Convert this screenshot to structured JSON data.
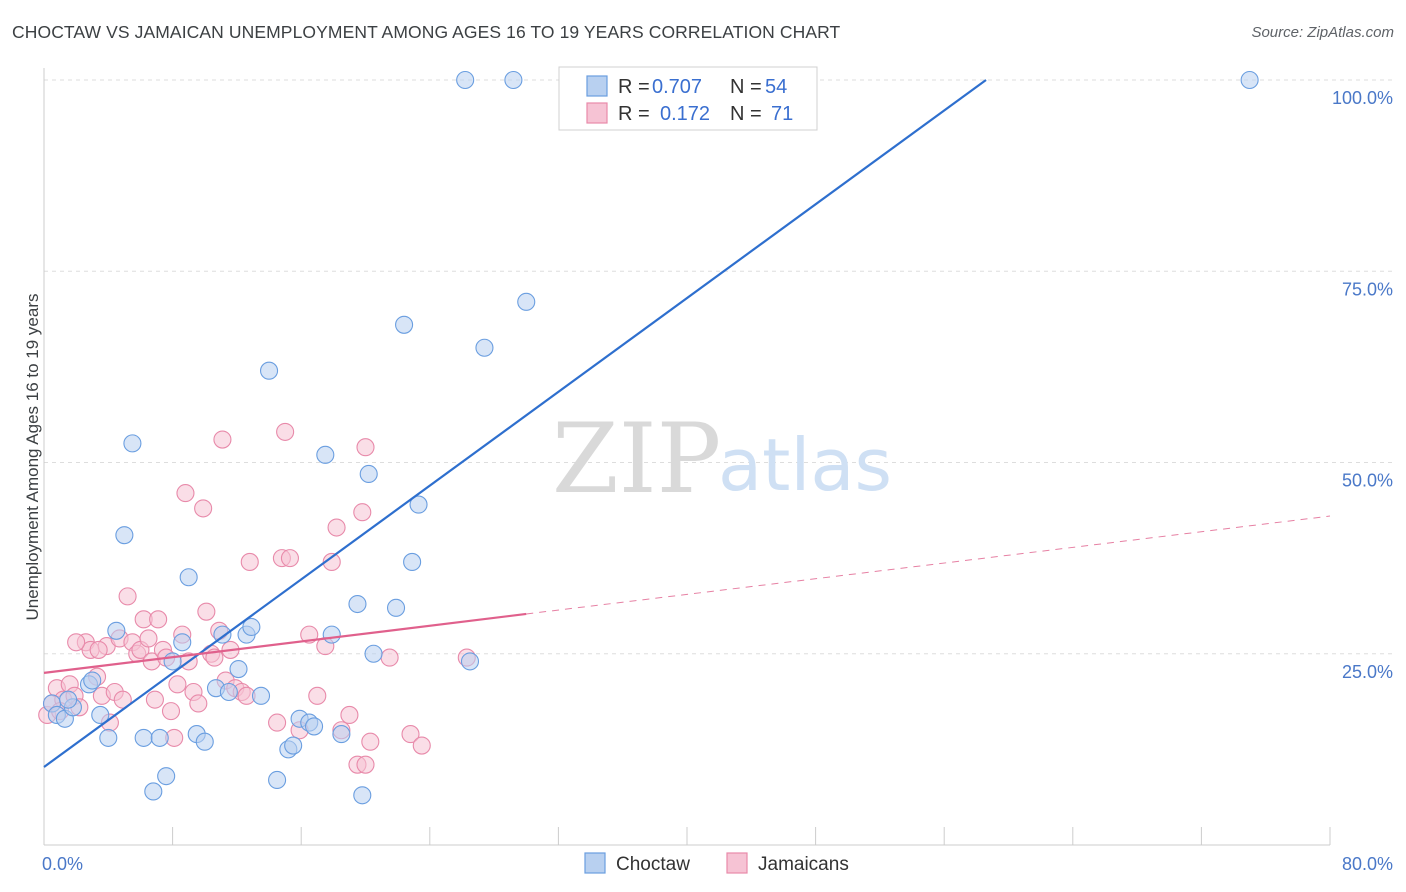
{
  "title": "CHOCTAW VS JAMAICAN UNEMPLOYMENT AMONG AGES 16 TO 19 YEARS CORRELATION CHART",
  "source": "Source: ZipAtlas.com",
  "watermark": {
    "zip": "ZIP",
    "atlas": "atlas"
  },
  "colors": {
    "blue_fill": "#b8d0f0",
    "blue_stroke": "#6a9ee0",
    "blue_line": "#2e6fce",
    "pink_fill": "#f6c3d4",
    "pink_stroke": "#e88aaa",
    "pink_line": "#e0608c",
    "tick_text": "#4a78c8",
    "grid": "#dddddd"
  },
  "legend_top": {
    "rows": [
      {
        "r_label": "R =",
        "r_value": "0.707",
        "n_label": "N =",
        "n_value": "54"
      },
      {
        "r_label": "R =",
        "r_value": "0.172",
        "n_label": "N =",
        "n_value": "71"
      }
    ]
  },
  "chart_data": {
    "type": "scatter",
    "title": "CHOCTAW VS JAMAICAN UNEMPLOYMENT AMONG AGES 16 TO 19 YEARS CORRELATION CHART",
    "xlabel": "",
    "ylabel": "Unemployment Among Ages 16 to 19 years",
    "xlim": [
      0,
      80
    ],
    "ylim": [
      0,
      100
    ],
    "x_tick_labels": [
      "0.0%",
      "80.0%"
    ],
    "y_ticks": [
      25,
      50,
      75,
      100
    ],
    "y_tick_labels": [
      "25.0%",
      "50.0%",
      "75.0%",
      "100.0%"
    ],
    "grid": true,
    "legend_position": "top-center",
    "series": [
      {
        "name": "Choctaw",
        "r": 0.707,
        "n": 54,
        "trend": {
          "x": [
            0,
            58.6
          ],
          "y": [
            10.2,
            100
          ]
        },
        "points": [
          [
            0.5,
            18.5
          ],
          [
            0.8,
            17
          ],
          [
            1.3,
            16.5
          ],
          [
            1.8,
            18
          ],
          [
            2.8,
            21
          ],
          [
            3.5,
            17
          ],
          [
            4.0,
            14
          ],
          [
            4.5,
            28
          ],
          [
            5.0,
            40.5
          ],
          [
            5.5,
            52.5
          ],
          [
            6.2,
            14
          ],
          [
            6.8,
            7
          ],
          [
            7.2,
            14
          ],
          [
            7.6,
            9
          ],
          [
            8.0,
            24
          ],
          [
            8.6,
            26.5
          ],
          [
            9.0,
            35
          ],
          [
            9.5,
            14.5
          ],
          [
            10.0,
            13.5
          ],
          [
            10.7,
            20.5
          ],
          [
            11.1,
            27.5
          ],
          [
            11.5,
            20
          ],
          [
            12.1,
            23
          ],
          [
            12.6,
            27.5
          ],
          [
            12.9,
            28.5
          ],
          [
            13.5,
            19.5
          ],
          [
            14.0,
            62
          ],
          [
            14.5,
            8.5
          ],
          [
            15.2,
            12.5
          ],
          [
            15.5,
            13
          ],
          [
            15.9,
            16.5
          ],
          [
            16.5,
            16
          ],
          [
            16.8,
            15.5
          ],
          [
            17.5,
            51
          ],
          [
            17.9,
            27.5
          ],
          [
            18.5,
            14.5
          ],
          [
            19.5,
            31.5
          ],
          [
            19.8,
            6.5
          ],
          [
            20.2,
            48.5
          ],
          [
            20.5,
            25
          ],
          [
            21.9,
            31
          ],
          [
            22.4,
            68
          ],
          [
            22.9,
            37
          ],
          [
            23.3,
            44.5
          ],
          [
            26.5,
            24
          ],
          [
            27.4,
            65
          ],
          [
            30.0,
            71
          ],
          [
            26.2,
            100
          ],
          [
            29.2,
            100
          ],
          [
            32.8,
            100
          ],
          [
            37.6,
            100
          ],
          [
            75.0,
            100
          ],
          [
            1.5,
            19
          ],
          [
            3.0,
            21.5
          ]
        ]
      },
      {
        "name": "Jamaicans",
        "r": 0.172,
        "n": 71,
        "trend": {
          "x": [
            0,
            30.0
          ],
          "y": [
            22.5,
            30.2
          ]
        },
        "trend_extension": {
          "x": [
            30.0,
            80
          ],
          "y": [
            30.2,
            43.0
          ]
        },
        "points": [
          [
            0.2,
            17
          ],
          [
            0.5,
            18.5
          ],
          [
            0.8,
            20.5
          ],
          [
            1.2,
            19
          ],
          [
            1.6,
            21
          ],
          [
            1.9,
            19.5
          ],
          [
            2.2,
            18
          ],
          [
            2.6,
            26.5
          ],
          [
            2.9,
            25.5
          ],
          [
            3.3,
            22
          ],
          [
            3.6,
            19.5
          ],
          [
            3.9,
            26
          ],
          [
            4.1,
            16
          ],
          [
            4.4,
            20
          ],
          [
            4.7,
            27
          ],
          [
            4.9,
            19
          ],
          [
            5.2,
            32.5
          ],
          [
            5.5,
            26.5
          ],
          [
            5.8,
            25
          ],
          [
            6.0,
            25.5
          ],
          [
            6.2,
            29.5
          ],
          [
            6.5,
            27
          ],
          [
            6.7,
            24
          ],
          [
            6.9,
            19
          ],
          [
            7.1,
            29.5
          ],
          [
            7.4,
            25.5
          ],
          [
            7.6,
            24.5
          ],
          [
            7.9,
            17.5
          ],
          [
            8.1,
            14
          ],
          [
            8.3,
            21
          ],
          [
            8.6,
            27.5
          ],
          [
            8.8,
            46
          ],
          [
            9.0,
            24
          ],
          [
            9.3,
            20
          ],
          [
            9.6,
            18.5
          ],
          [
            9.9,
            44
          ],
          [
            10.1,
            30.5
          ],
          [
            10.4,
            25
          ],
          [
            10.6,
            24.5
          ],
          [
            10.9,
            28
          ],
          [
            11.1,
            53
          ],
          [
            11.3,
            21.5
          ],
          [
            11.6,
            25.5
          ],
          [
            11.9,
            20.5
          ],
          [
            12.3,
            20
          ],
          [
            12.6,
            19.5
          ],
          [
            12.8,
            37
          ],
          [
            14.5,
            16
          ],
          [
            14.8,
            37.5
          ],
          [
            15.0,
            54
          ],
          [
            15.3,
            37.5
          ],
          [
            15.9,
            15
          ],
          [
            16.5,
            27.5
          ],
          [
            17.0,
            19.5
          ],
          [
            17.5,
            26
          ],
          [
            17.9,
            37
          ],
          [
            18.2,
            41.5
          ],
          [
            18.5,
            15
          ],
          [
            19.0,
            17
          ],
          [
            19.5,
            10.5
          ],
          [
            20.0,
            10.5
          ],
          [
            20.3,
            13.5
          ],
          [
            19.8,
            43.5
          ],
          [
            20.0,
            52
          ],
          [
            21.5,
            24.5
          ],
          [
            22.8,
            14.5
          ],
          [
            23.5,
            13
          ],
          [
            26.3,
            24.5
          ],
          [
            2.0,
            26.5
          ],
          [
            3.4,
            25.5
          ],
          [
            1.0,
            17.5
          ]
        ]
      }
    ]
  },
  "bottom_legend": {
    "items": [
      "Choctaw",
      "Jamaicans"
    ]
  }
}
